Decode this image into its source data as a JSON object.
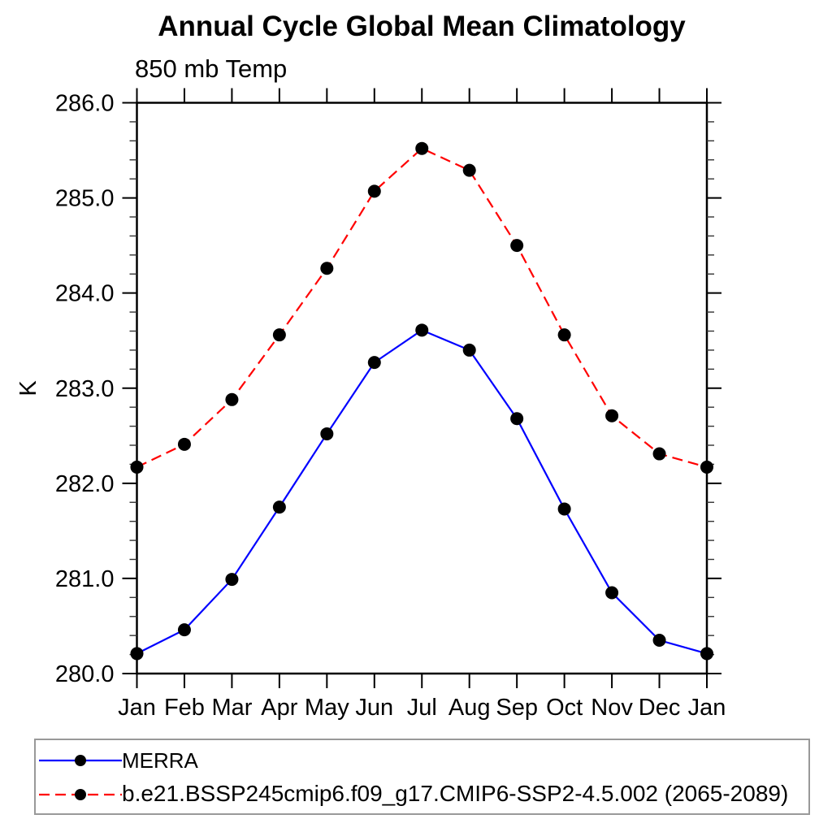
{
  "chart_data": {
    "type": "line",
    "title": "Annual Cycle Global Mean Climatology",
    "subtitle": "850 mb Temp",
    "xlabel": "",
    "ylabel": "K",
    "x": [
      "Jan",
      "Feb",
      "Mar",
      "Apr",
      "May",
      "Jun",
      "Jul",
      "Aug",
      "Sep",
      "Oct",
      "Nov",
      "Dec",
      "Jan"
    ],
    "ylim": [
      280.0,
      286.0
    ],
    "y_major_tick_step": 1.0,
    "y_minor_tick_step": 0.2,
    "y_tick_labels": [
      "280.0",
      "281.0",
      "282.0",
      "283.0",
      "284.0",
      "285.0",
      "286.0"
    ],
    "grid": false,
    "tick_direction": "out",
    "frame": "box-all-four-axes",
    "series": [
      {
        "name": "MERRA",
        "color": "#0000ff",
        "line_style": "solid",
        "marker": "filled-circle",
        "marker_color": "#000000",
        "values": [
          280.21,
          280.46,
          280.99,
          281.75,
          282.52,
          283.27,
          283.61,
          283.4,
          282.68,
          281.73,
          280.85,
          280.35,
          280.21
        ]
      },
      {
        "name": "b.e21.BSSP245cmip6.f09_g17.CMIP6-SSP2-4.5.002 (2065-2089)",
        "color": "#ff0000",
        "line_style": "dashed",
        "marker": "filled-circle",
        "marker_color": "#000000",
        "values": [
          282.17,
          282.41,
          282.88,
          283.56,
          284.26,
          285.07,
          285.52,
          285.29,
          284.5,
          283.56,
          282.71,
          282.31,
          282.17
        ]
      }
    ],
    "legend": {
      "position": "below-plot-left",
      "border_color": "#999999"
    }
  }
}
